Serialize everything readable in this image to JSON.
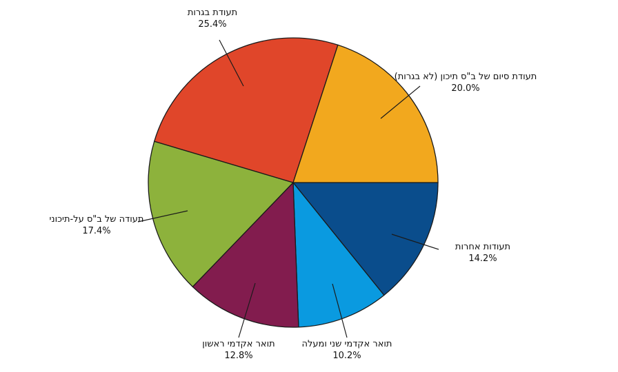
{
  "chart_data": {
    "type": "pie",
    "title": "",
    "legend": "none",
    "slices": [
      {
        "label": "תעודות אחרות",
        "value": 14.2,
        "value_label": "14.2%",
        "color": "#0a4d8c"
      },
      {
        "label": "תואר אקדמי שני ומעלה",
        "value": 10.2,
        "value_label": "10.2%",
        "color": "#0a9ae0"
      },
      {
        "label": "תואר אקדמי ראשון",
        "value": 12.8,
        "value_label": "12.8%",
        "color": "#821c4e"
      },
      {
        "label": "תעודה של ב\"ס על-תיכוני",
        "value": 17.4,
        "value_label": "17.4%",
        "color": "#8db23c"
      },
      {
        "label": "תעודת בגרות",
        "value": 25.4,
        "value_label": "25.4%",
        "color": "#e0462a"
      },
      {
        "label": "תעודת סיום של ב\"ס תיכון (לא בגרות)",
        "value": 20.0,
        "value_label": "20.0%",
        "color": "#f2a81e"
      }
    ]
  }
}
